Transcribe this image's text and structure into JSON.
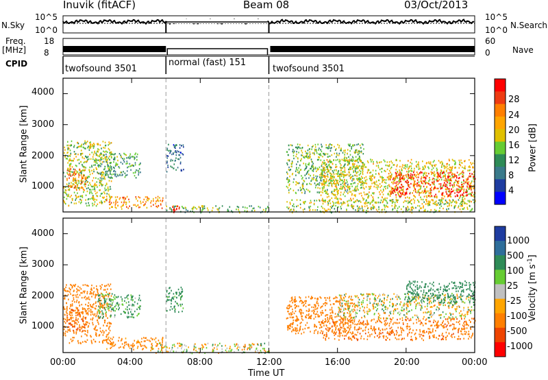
{
  "header": {
    "station": "Inuvik (fitACF)",
    "beam": "Beam 08",
    "date": "03/Oct/2013"
  },
  "strip": {
    "nsky_label": "N.Sky",
    "nsky_ticks": [
      "10^5",
      "10^0"
    ],
    "nsearch_label": "N.Search",
    "nsearch_ticks": [
      "10^5",
      "10^0"
    ],
    "freq_label": "Freq.",
    "freq_unit": "[MHz]",
    "freq_ticks": [
      "18",
      "8"
    ],
    "nave_label": "Nave",
    "nave_ticks": [
      "60",
      "0"
    ],
    "cpid_label": "CPID",
    "cpid_segments": [
      {
        "label": "twofsound 3501",
        "start": 0,
        "end": 6
      },
      {
        "label": "normal (fast) 151",
        "start": 6,
        "end": 12
      },
      {
        "label": "twofsound 3501",
        "start": 12,
        "end": 24
      }
    ]
  },
  "axes": {
    "ylabel": "Slant Range [km]",
    "xlabel": "Time UT",
    "yticks": [
      "4000",
      "3000",
      "2000",
      "1000"
    ],
    "xticks": [
      "00:00",
      "04:00",
      "08:00",
      "12:00",
      "16:00",
      "20:00",
      "00:00"
    ]
  },
  "power_colorbar": {
    "label": "Power [dB]",
    "ticks": [
      "28",
      "24",
      "20",
      "16",
      "12",
      "8",
      "4"
    ],
    "colors": [
      "#ff0000",
      "#ee3b12",
      "#ff7f00",
      "#ffa500",
      "#e0c000",
      "#66cc33",
      "#2e8b57",
      "#3a7a8a",
      "#1e3ca0",
      "#0000ff"
    ]
  },
  "velocity_colorbar": {
    "label": "Velocity [m s",
    "label_sup": "-1",
    "label_end": "]",
    "ticks": [
      "1000",
      "500",
      "100",
      "25",
      "-25",
      "-100",
      "-500",
      "-1000"
    ],
    "colors": [
      "#1e3ca0",
      "#2e6e9a",
      "#2e8b57",
      "#66cc33",
      "#c0c0c0",
      "#ffa500",
      "#ff7f00",
      "#ee4400",
      "#ff0000"
    ]
  },
  "chart_data": [
    {
      "type": "heatmap",
      "title": "Power",
      "xlabel": "Time UT",
      "ylabel": "Slant Range [km]",
      "xlim_hours": [
        0,
        24
      ],
      "ylim_km": [
        180,
        4500
      ],
      "colorbar_label": "Power [dB]",
      "colorbar_ticks": [
        28,
        24,
        20,
        16,
        12,
        8,
        4
      ],
      "scatter_regions": [
        {
          "t0": 0.0,
          "t1": 2.8,
          "r0": 400,
          "r1": 2500,
          "v": 14
        },
        {
          "t0": 0.2,
          "t1": 1.3,
          "r0": 900,
          "r1": 1600,
          "v": 22
        },
        {
          "t0": 2.5,
          "t1": 5.8,
          "r0": 300,
          "r1": 700,
          "v": 20
        },
        {
          "t0": 2.0,
          "t1": 4.5,
          "r0": 1300,
          "r1": 2100,
          "v": 10
        },
        {
          "t0": 6.0,
          "t1": 7.0,
          "r0": 1500,
          "r1": 2400,
          "v": 6
        },
        {
          "t0": 6.0,
          "t1": 12.0,
          "r0": 180,
          "r1": 400,
          "v": 12
        },
        {
          "t0": 6.3,
          "t1": 6.9,
          "r0": 180,
          "r1": 400,
          "v": 28
        },
        {
          "t0": 13.0,
          "t1": 17.5,
          "r0": 800,
          "r1": 2400,
          "v": 12
        },
        {
          "t0": 15.0,
          "t1": 24.0,
          "r0": 500,
          "r1": 1900,
          "v": 16
        },
        {
          "t0": 19.0,
          "t1": 24.0,
          "r0": 700,
          "r1": 1500,
          "v": 26
        },
        {
          "t0": 13.0,
          "t1": 24.0,
          "r0": 180,
          "r1": 600,
          "v": 14
        }
      ]
    },
    {
      "type": "heatmap",
      "title": "Velocity",
      "xlabel": "Time UT",
      "ylabel": "Slant Range [km]",
      "xlim_hours": [
        0,
        24
      ],
      "ylim_km": [
        180,
        4500
      ],
      "colorbar_label": "Velocity [m s-1]",
      "colorbar_ticks": [
        1000,
        500,
        100,
        25,
        -25,
        -100,
        -500,
        -1000
      ],
      "scatter_regions": [
        {
          "t0": 0.0,
          "t1": 2.8,
          "r0": 500,
          "r1": 2400,
          "v": -300
        },
        {
          "t0": 0.2,
          "t1": 1.3,
          "r0": 900,
          "r1": 1600,
          "v": -500
        },
        {
          "t0": 2.0,
          "t1": 4.5,
          "r0": 1300,
          "r1": 2100,
          "v": 150
        },
        {
          "t0": 2.5,
          "t1": 5.8,
          "r0": 300,
          "r1": 700,
          "v": -200
        },
        {
          "t0": 6.0,
          "t1": 7.0,
          "r0": 1500,
          "r1": 2300,
          "v": 200
        },
        {
          "t0": 5.0,
          "t1": 12.0,
          "r0": 180,
          "r1": 500,
          "v": 0
        },
        {
          "t0": 13.0,
          "t1": 17.0,
          "r0": 800,
          "r1": 2000,
          "v": -300
        },
        {
          "t0": 15.0,
          "t1": 24.0,
          "r0": 600,
          "r1": 1300,
          "v": -400
        },
        {
          "t0": 16.0,
          "t1": 24.0,
          "r0": 1300,
          "r1": 2100,
          "v": 0
        },
        {
          "t0": 20.0,
          "t1": 24.0,
          "r0": 1800,
          "r1": 2500,
          "v": 300
        }
      ]
    }
  ]
}
